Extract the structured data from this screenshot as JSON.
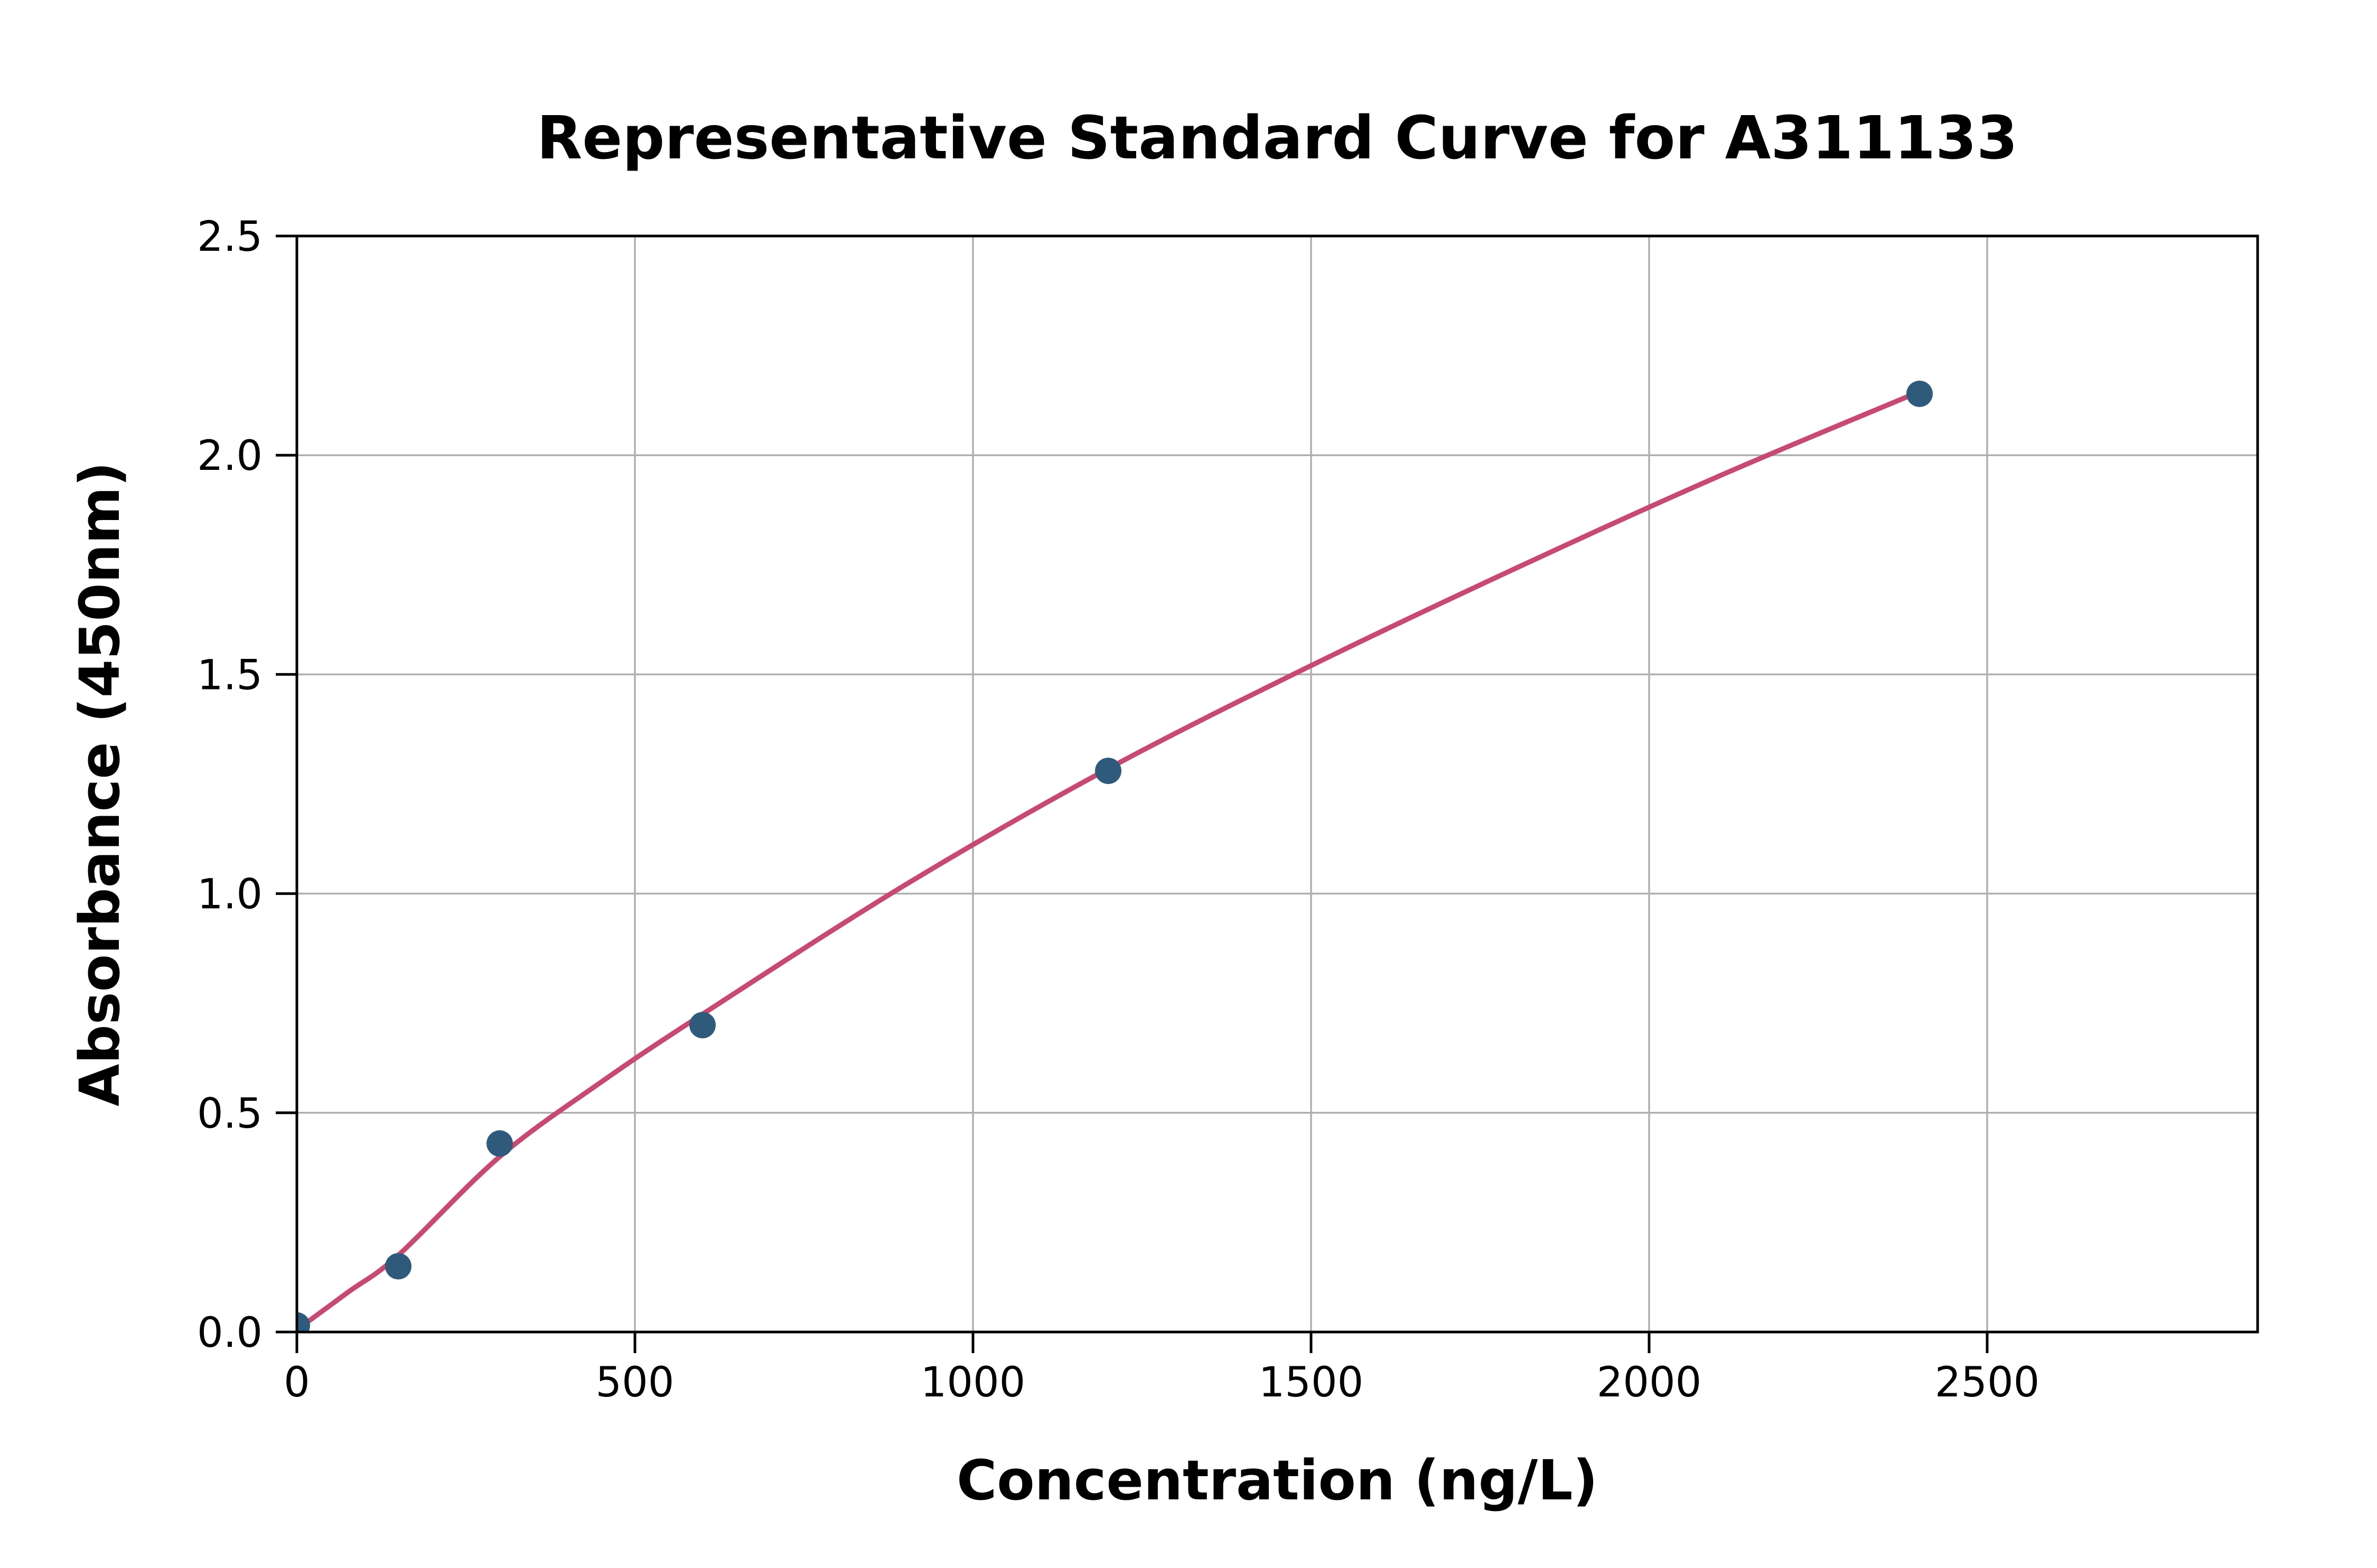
{
  "figure": {
    "background": "#ffffff"
  },
  "chart_data": {
    "type": "scatter",
    "title": "Representative Standard Curve for A311133",
    "xlabel": "Concentration (ng/L)",
    "ylabel": "Absorbance (450nm)",
    "xlim": [
      0,
      2900
    ],
    "ylim": [
      0,
      2.5
    ],
    "grid": true,
    "legend_position": "none",
    "x_ticks": {
      "values": [
        0,
        500,
        1000,
        1500,
        2000,
        2500
      ],
      "labels": [
        "0",
        "500",
        "1000",
        "1500",
        "2000",
        "2500"
      ]
    },
    "y_ticks": {
      "values": [
        0,
        0.5,
        1.0,
        1.5,
        2.0,
        2.5
      ],
      "labels": [
        "0.0",
        "0.5",
        "1.0",
        "1.5",
        "2.0",
        "2.5"
      ]
    },
    "series": [
      {
        "name": "standard-points",
        "kind": "scatter",
        "marker": "circle",
        "color": "#305A7C",
        "points": [
          [
            0,
            0.015
          ],
          [
            150,
            0.15
          ],
          [
            300,
            0.43
          ],
          [
            600,
            0.7
          ],
          [
            1200,
            1.28
          ],
          [
            2400,
            2.14
          ]
        ]
      },
      {
        "name": "fitted-curve",
        "kind": "line",
        "color": "#C64A72",
        "points": [
          [
            0,
            0.005
          ],
          [
            75,
            0.09
          ],
          [
            150,
            0.175
          ],
          [
            300,
            0.4
          ],
          [
            450,
            0.57
          ],
          [
            600,
            0.725
          ],
          [
            900,
            1.02
          ],
          [
            1200,
            1.285
          ],
          [
            1500,
            1.52
          ],
          [
            1800,
            1.74
          ],
          [
            2100,
            1.95
          ],
          [
            2400,
            2.145
          ]
        ]
      }
    ],
    "colors": {
      "grid": "#B0B0B0",
      "spine": "#000000",
      "tick": "#000000",
      "text": "#000000"
    }
  }
}
